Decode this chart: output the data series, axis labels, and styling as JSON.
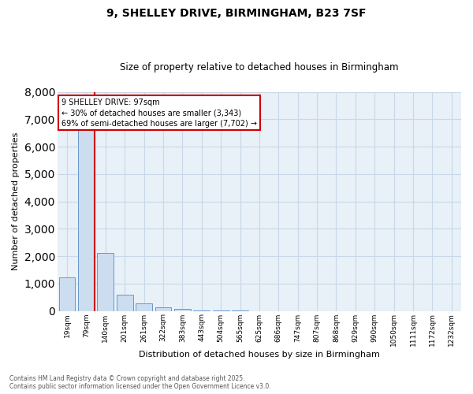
{
  "title_line1": "9, SHELLEY DRIVE, BIRMINGHAM, B23 7SF",
  "title_line2": "Size of property relative to detached houses in Birmingham",
  "xlabel": "Distribution of detached houses by size in Birmingham",
  "ylabel": "Number of detached properties",
  "categories": [
    "19sqm",
    "79sqm",
    "140sqm",
    "201sqm",
    "261sqm",
    "322sqm",
    "383sqm",
    "443sqm",
    "504sqm",
    "565sqm",
    "625sqm",
    "686sqm",
    "747sqm",
    "807sqm",
    "868sqm",
    "929sqm",
    "990sqm",
    "1050sqm",
    "1111sqm",
    "1172sqm",
    "1232sqm"
  ],
  "values": [
    1230,
    6720,
    2130,
    590,
    280,
    120,
    60,
    30,
    20,
    5,
    0,
    0,
    0,
    0,
    0,
    0,
    0,
    0,
    0,
    0,
    0
  ],
  "bar_color": "#ccddf0",
  "bar_edge_color": "#6699cc",
  "red_line_color": "#cc0000",
  "red_line_x": 1.43,
  "annotation_text": "9 SHELLEY DRIVE: 97sqm\n← 30% of detached houses are smaller (3,343)\n69% of semi-detached houses are larger (7,702) →",
  "annotation_box_facecolor": "#ffffff",
  "annotation_box_edgecolor": "#cc0000",
  "ylim": [
    0,
    8000
  ],
  "yticks": [
    0,
    1000,
    2000,
    3000,
    4000,
    5000,
    6000,
    7000,
    8000
  ],
  "grid_color": "#c8d8e8",
  "background_color": "#e8f0f8",
  "footnote": "Contains HM Land Registry data © Crown copyright and database right 2025.\nContains public sector information licensed under the Open Government Licence v3.0.",
  "title_fontsize": 10,
  "subtitle_fontsize": 8.5,
  "xlabel_fontsize": 8,
  "ylabel_fontsize": 8,
  "tick_fontsize": 6.5,
  "footnote_fontsize": 5.5,
  "annotation_fontsize": 7
}
